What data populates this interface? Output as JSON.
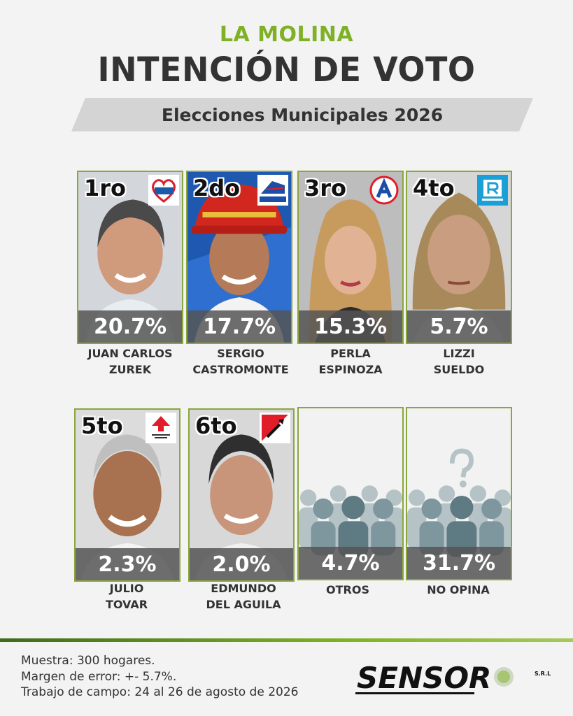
{
  "header": {
    "district": "LA MOLINA",
    "title": "INTENCIÓN DE VOTO",
    "banner": "Elecciones Municipales 2026"
  },
  "chart_data": {
    "type": "bar",
    "categories": [
      "JUAN CARLOS ZUREK",
      "SERGIO CASTROMONTE",
      "PERLA ESPINOZA",
      "LIZZI SUELDO",
      "JULIO TOVAR",
      "EDMUNDO DEL AGUILA",
      "OTROS",
      "NO OPINA"
    ],
    "values": [
      20.7,
      17.7,
      15.3,
      5.7,
      2.3,
      2.0,
      4.7,
      31.7
    ],
    "unit": "%"
  },
  "cards": [
    {
      "rank": "1ro",
      "pct": "20.7%",
      "name1": "JUAN CARLOS",
      "name2": "ZUREK",
      "party": "SOMOS PERU",
      "bg": "#c8d0d8"
    },
    {
      "rank": "2do",
      "pct": "17.7%",
      "name1": "SERGIO",
      "name2": "CASTROMONTE",
      "party": "AVANZA PAÍS",
      "bg": "#1b4fa0"
    },
    {
      "rank": "3ro",
      "pct": "15.3%",
      "name1": "PERLA",
      "name2": "ESPINOZA",
      "party": "A",
      "bg": "#b7b7b7"
    },
    {
      "rank": "4to",
      "pct": "5.7%",
      "name1": "LIZZI",
      "name2": "SUELDO",
      "party": "RENOVACIÓN POPULAR",
      "bg": "#d6d6d6"
    },
    {
      "rank": "5to",
      "pct": "2.3%",
      "name1": "JULIO",
      "name2": "TOVAR",
      "party": "PARTIDO POLÍTICO ADP",
      "bg": "#dcdcdc"
    },
    {
      "rank": "6to",
      "pct": "2.0%",
      "name1": "EDMUNDO",
      "name2": "DEL AGUILA",
      "party": "",
      "bg": "#d8d8d8"
    },
    {
      "rank": "",
      "pct": "4.7%",
      "name1": "OTROS",
      "name2": "",
      "party": "",
      "bg": "#efefef"
    },
    {
      "rank": "",
      "pct": "31.7%",
      "name1": "NO OPINA",
      "name2": "",
      "party": "",
      "bg": "#efefef"
    }
  ],
  "footer": {
    "line1": "Muestra: 300 hogares.",
    "line2": "Margen de error: +- 5.7%.",
    "line3": "Trabajo de campo: 24 al 26 de agosto de 2026",
    "brand": "SENSOR",
    "brand_suffix": "S.R.L."
  },
  "colors": {
    "accent": "#7fb126",
    "border": "#8aa63e",
    "dark": "#333333"
  }
}
